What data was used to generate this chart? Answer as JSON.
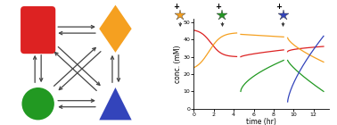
{
  "fig_width": 3.78,
  "fig_height": 1.4,
  "dpi": 100,
  "colors": {
    "red": "#dd2222",
    "orange": "#f5a020",
    "green": "#229922",
    "blue": "#3344bb"
  },
  "ylim": [
    0,
    52
  ],
  "xlim": [
    0,
    13.5
  ],
  "yticks": [
    0,
    10,
    20,
    30,
    40,
    50
  ],
  "xticks": [
    0,
    2,
    4,
    6,
    8,
    10,
    12
  ],
  "ylabel": "conc. (mM)",
  "xlabel": "time (hr)",
  "seg1": {
    "t0": 0.0,
    "t1": 4.3
  },
  "seg2": {
    "t0": 4.7,
    "t1": 9.0
  },
  "seg3": {
    "t0": 9.4,
    "t1": 13.0
  },
  "star_positions": [
    {
      "xfig": 0.535,
      "color": "#f5a020"
    },
    {
      "xfig": 0.66,
      "color": "#229922"
    },
    {
      "xfig": 0.84,
      "color": "#3344bb"
    }
  ]
}
